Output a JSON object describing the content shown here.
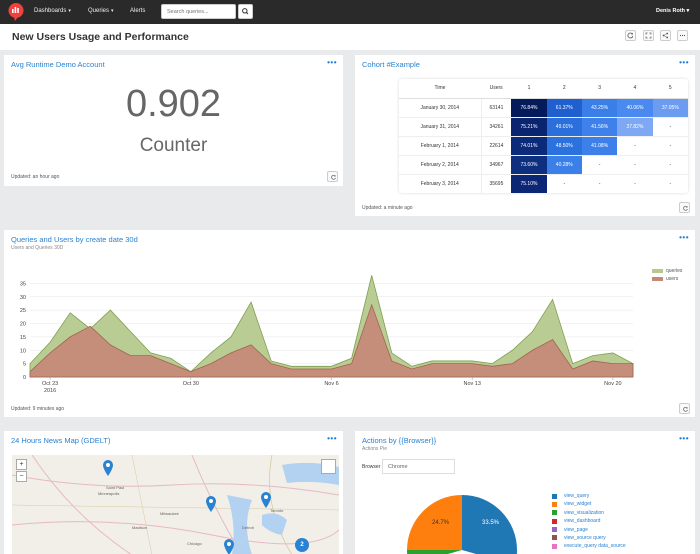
{
  "nav": {
    "dashboards": "Dashboards",
    "queries": "Queries",
    "alerts": "Alerts",
    "search_placeholder": "Search queries...",
    "user": "Denis Roth"
  },
  "page": {
    "title": "New Users Usage and Performance"
  },
  "counter": {
    "title": "Avg Runtime Demo Account",
    "value": "0.902",
    "label": "Counter",
    "updated": "Updated: an hour ago"
  },
  "cohort": {
    "title": "Cohort #Example",
    "headers": [
      "Time",
      "Users",
      "1",
      "2",
      "3",
      "4",
      "5"
    ],
    "rows": [
      {
        "date": "January 30, 2014",
        "users": "63141",
        "cells": [
          "76.84%",
          "61.37%",
          "43.25%",
          "40.06%",
          "37.05%"
        ]
      },
      {
        "date": "January 31, 2014",
        "users": "34261",
        "cells": [
          "75.21%",
          "49.01%",
          "41.56%",
          "37.82%",
          "-"
        ]
      },
      {
        "date": "February 1, 2014",
        "users": "22614",
        "cells": [
          "74.01%",
          "48.50%",
          "41.08%",
          "-",
          "-"
        ]
      },
      {
        "date": "February 2, 2014",
        "users": "34967",
        "cells": [
          "73.60%",
          "40.28%",
          "-",
          "-",
          "-"
        ]
      },
      {
        "date": "February 3, 2014",
        "users": "35695",
        "cells": [
          "75.10%",
          "-",
          "-",
          "-",
          "-"
        ]
      }
    ],
    "updated": "Updated: a minute ago"
  },
  "area": {
    "title": "Queries and Users by create date 30d",
    "subtitle": "Users and Queries 30D",
    "updated": "Updated: 9 minutes ago",
    "legend": [
      {
        "name": "queries",
        "color": "#b5c98e"
      },
      {
        "name": "users",
        "color": "#c48a78"
      }
    ]
  },
  "chart_data": {
    "type": "area",
    "x": [
      "Oct 22",
      "Oct 23",
      "Oct 24",
      "Oct 25",
      "Oct 26",
      "Oct 27",
      "Oct 28",
      "Oct 29",
      "Oct 30",
      "Oct 31",
      "Nov 1",
      "Nov 2",
      "Nov 3",
      "Nov 4",
      "Nov 5",
      "Nov 6",
      "Nov 7",
      "Nov 8",
      "Nov 9",
      "Nov 10",
      "Nov 11",
      "Nov 12",
      "Nov 13",
      "Nov 14",
      "Nov 15",
      "Nov 16",
      "Nov 17",
      "Nov 18",
      "Nov 19",
      "Nov 20",
      "Nov 21"
    ],
    "tick_labels": [
      "Oct 23\n2016",
      "Oct 30",
      "Nov 6",
      "Nov 13",
      "Nov 20"
    ],
    "series": [
      {
        "name": "queries",
        "values": [
          5,
          13,
          24,
          18,
          25,
          17,
          9,
          7,
          2,
          9,
          15,
          28,
          6,
          4,
          4,
          4,
          7,
          38,
          9,
          4,
          6,
          6,
          6,
          5,
          10,
          17,
          29,
          5,
          8,
          9,
          5
        ]
      },
      {
        "name": "users",
        "values": [
          2,
          9,
          15,
          19,
          12,
          8,
          8,
          5,
          2,
          5,
          9,
          12,
          5,
          3,
          3,
          3,
          5,
          27,
          6,
          3,
          5,
          5,
          5,
          4,
          5,
          10,
          14,
          3,
          6,
          5,
          5
        ]
      }
    ],
    "ylim": [
      0,
      40
    ],
    "yticks": [
      0,
      5,
      10,
      15,
      20,
      25,
      30,
      35
    ],
    "grid": true,
    "legend_position": "top-right"
  },
  "map": {
    "title": "24 Hours News Map (GDELT)",
    "zoom_in": "+",
    "zoom_out": "−",
    "labels": [
      "Saint Paul",
      "Minneapolis",
      "Milwaukee",
      "Madison",
      "Detroit",
      "Toronto",
      "Chicago"
    ],
    "cluster_count": "2"
  },
  "actions": {
    "title": "Actions by {{Browser}}",
    "subtitle": "Actions Pie",
    "browser_label": "Browser",
    "browser_value": "Chrome",
    "slices": [
      {
        "label": "view_query",
        "color": "#1f77b4",
        "pct": "33.5%"
      },
      {
        "label": "view_widget",
        "color": "#ff7f0e",
        "pct": "24.7%"
      },
      {
        "label": "view_visualization",
        "color": "#2ca02c",
        "pct": ""
      },
      {
        "label": "view_dashboard",
        "color": "#d62728",
        "pct": ""
      },
      {
        "label": "view_page",
        "color": "#9467bd",
        "pct": ""
      },
      {
        "label": "view_source query",
        "color": "#8c564b",
        "pct": ""
      },
      {
        "label": "execute_query data_source",
        "color": "#e377c2",
        "pct": ""
      }
    ]
  }
}
